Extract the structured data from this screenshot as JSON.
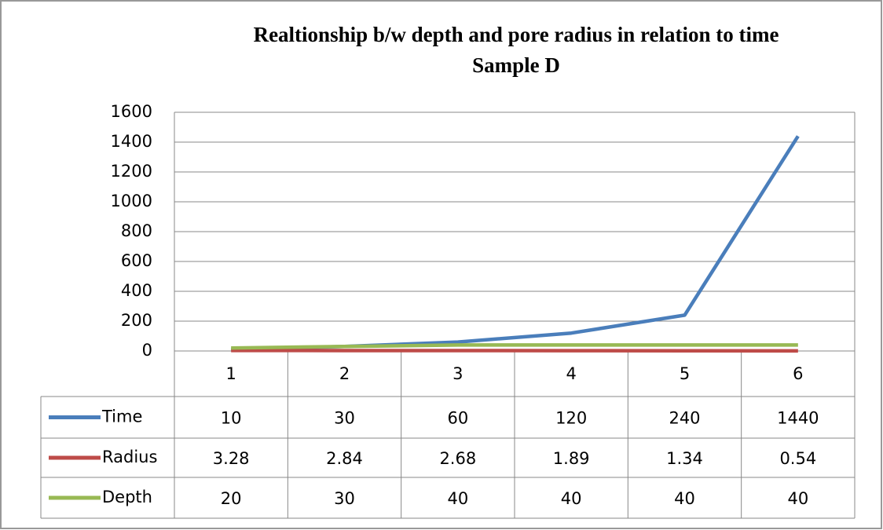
{
  "chart_data": {
    "type": "line",
    "title": "Realtionship b/w depth and pore radius in relation to time",
    "subtitle": "Sample D",
    "categories": [
      "1",
      "2",
      "3",
      "4",
      "5",
      "6"
    ],
    "series": [
      {
        "name": "Time",
        "color": "#4a7ebb",
        "values": [
          10,
          30,
          60,
          120,
          240,
          1440
        ]
      },
      {
        "name": "Radius",
        "color": "#be4b48",
        "values": [
          3.28,
          2.84,
          2.68,
          1.89,
          1.34,
          0.54
        ]
      },
      {
        "name": "Depth",
        "color": "#98b954",
        "values": [
          20,
          30,
          40,
          40,
          40,
          40
        ]
      }
    ],
    "ylim": [
      0,
      1600
    ],
    "yticks": [
      0,
      200,
      400,
      600,
      800,
      1000,
      1200,
      1400,
      1600
    ],
    "grid": true,
    "data_table": true
  }
}
